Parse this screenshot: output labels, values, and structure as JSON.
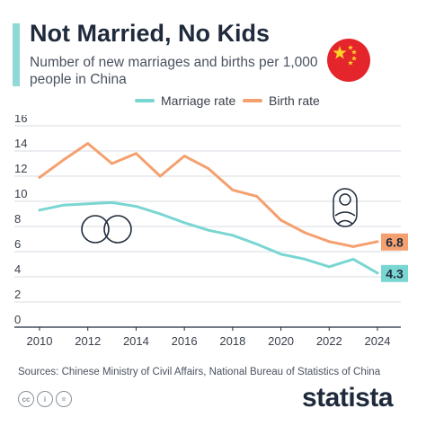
{
  "header": {
    "title": "Not Married, No Kids",
    "subtitle": "Number of new marriages and births per 1,000 people in China"
  },
  "footer": {
    "source": "Sources: Chinese Ministry of Civil Affairs, National Bureau of Statistics of China",
    "brand": "statista",
    "license_icons": [
      "cc",
      "i",
      "="
    ]
  },
  "icons": {
    "flag": "china-flag-icon",
    "rings": "wedding-rings-icon",
    "baby": "swaddled-baby-icon"
  },
  "colors": {
    "accent": "#8fd9d6",
    "marriage": "#79d6d2",
    "birth": "#f4a06f",
    "flag_red": "#e4252b",
    "flag_star": "#ffd32a"
  },
  "chart_data": {
    "type": "line",
    "title": "Not Married, No Kids",
    "subtitle": "Number of new marriages and births per 1,000 people in China",
    "x": [
      2010,
      2011,
      2012,
      2013,
      2014,
      2015,
      2016,
      2017,
      2018,
      2019,
      2020,
      2021,
      2022,
      2023,
      2024
    ],
    "xticks": [
      2010,
      2012,
      2014,
      2016,
      2018,
      2020,
      2022,
      2024
    ],
    "yticks": [
      0,
      2,
      4,
      6,
      8,
      10,
      12,
      14,
      16
    ],
    "ylim": [
      0,
      16
    ],
    "xlim": [
      2010,
      2024
    ],
    "grid": true,
    "legend": "top-center",
    "series": [
      {
        "name": "Marriage rate",
        "color": "#79d6d2",
        "values": [
          9.3,
          9.7,
          9.8,
          9.9,
          9.6,
          9.0,
          8.3,
          7.7,
          7.3,
          6.6,
          5.8,
          5.4,
          4.8,
          5.4,
          4.3
        ],
        "end_label": "4.3"
      },
      {
        "name": "Birth rate",
        "color": "#f4a06f",
        "values": [
          11.9,
          13.3,
          14.6,
          13.0,
          13.8,
          12.0,
          13.6,
          12.6,
          10.9,
          10.4,
          8.5,
          7.5,
          6.8,
          6.4,
          6.8
        ],
        "end_label": "6.8"
      }
    ]
  }
}
